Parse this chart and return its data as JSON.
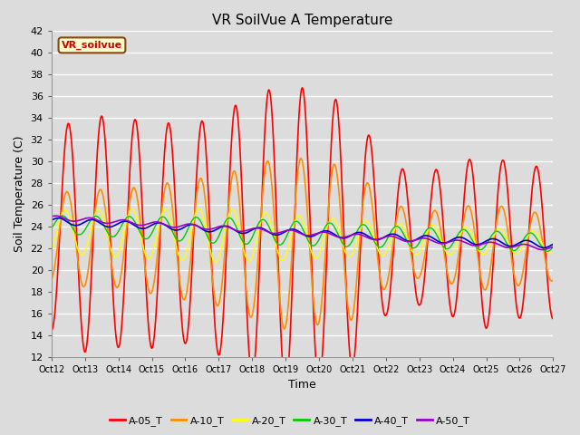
{
  "title": "VR SoilVue A Temperature",
  "xlabel": "Time",
  "ylabel": "Soil Temperature (C)",
  "ylim": [
    12,
    42
  ],
  "yticks": [
    12,
    14,
    16,
    18,
    20,
    22,
    24,
    26,
    28,
    30,
    32,
    34,
    36,
    38,
    40,
    42
  ],
  "background_color": "#dcdcdc",
  "plot_bg_color": "#dcdcdc",
  "legend_label": "VR_soilvue",
  "legend_box_color": "#ffffcc",
  "legend_box_edge": "#8b4513",
  "series": [
    {
      "name": "A-05_T",
      "color": "#ff0000"
    },
    {
      "name": "A-10_T",
      "color": "#ff8c00"
    },
    {
      "name": "A-20_T",
      "color": "#ffff00"
    },
    {
      "name": "A-30_T",
      "color": "#00cc00"
    },
    {
      "name": "A-40_T",
      "color": "#0000cc"
    },
    {
      "name": "A-50_T",
      "color": "#9900cc"
    }
  ],
  "xtick_labels": [
    "Oct 12",
    "Oct 13",
    "Oct 14",
    "Oct 15",
    "Oct 16",
    "Oct 17",
    "Oct 18",
    "Oct 19",
    "Oct 20",
    "Oct 21",
    "Oct 22",
    "Oct 23",
    "Oct 24",
    "Oct 25",
    "Oct 26",
    "Oct 27"
  ],
  "base_temp": 24.0,
  "title_fontsize": 11,
  "axis_fontsize": 9,
  "tick_fontsize": 8,
  "legend_fontsize": 8
}
